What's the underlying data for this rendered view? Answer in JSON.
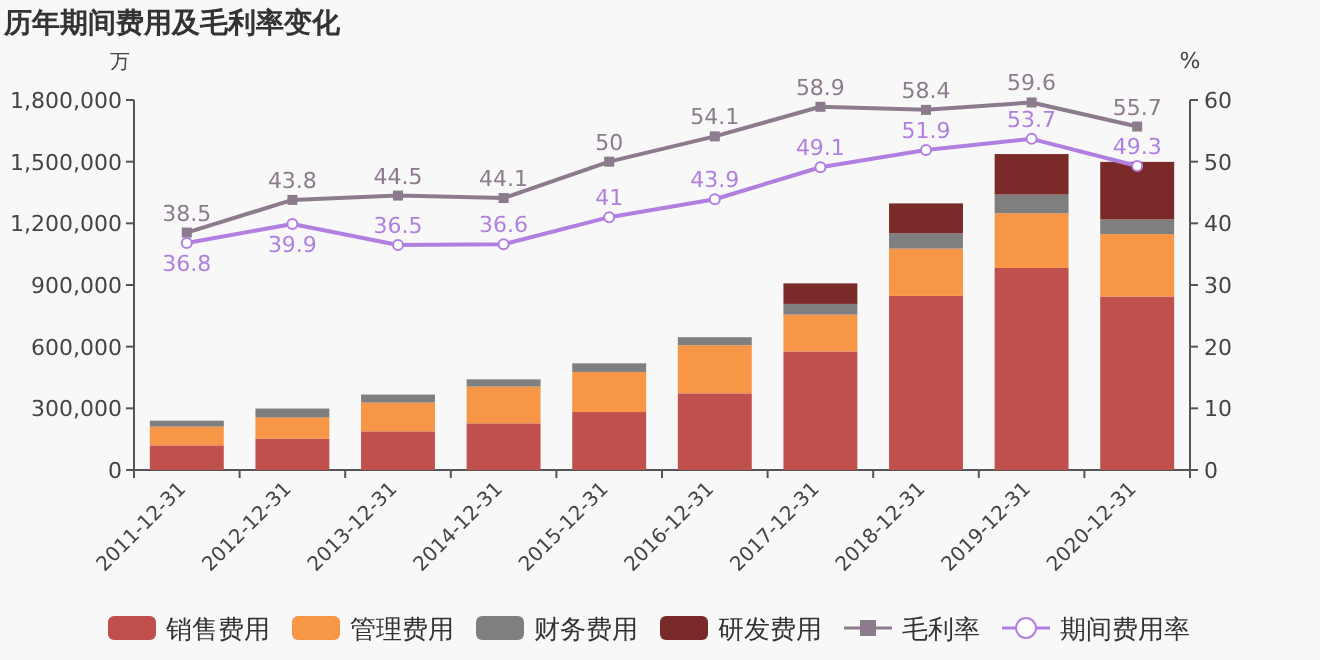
{
  "chart_data": {
    "type": "bar",
    "stacked": true,
    "title": "历年期间费用及毛利率变化",
    "ylabel": "万",
    "y2label": "%",
    "categories": [
      "2011-12-31",
      "2012-12-31",
      "2013-12-31",
      "2014-12-31",
      "2015-12-31",
      "2016-12-31",
      "2017-12-31",
      "2018-12-31",
      "2019-12-31",
      "2020-12-31"
    ],
    "series": [
      {
        "name": "销售费用",
        "color": "#c0504d",
        "values": [
          120000,
          153000,
          188000,
          227000,
          282000,
          373000,
          577000,
          847000,
          983000,
          844000
        ]
      },
      {
        "name": "管理费用",
        "color": "#f79646",
        "values": [
          91000,
          103000,
          140000,
          179000,
          195000,
          234000,
          179000,
          230000,
          266000,
          304000
        ]
      },
      {
        "name": "财务费用",
        "color": "#7f7f7f",
        "values": [
          29000,
          43000,
          39000,
          35000,
          42000,
          39000,
          52000,
          74000,
          91000,
          71000
        ]
      },
      {
        "name": "研发费用",
        "color": "#7b2a2a",
        "values": [
          null,
          null,
          null,
          null,
          null,
          null,
          100000,
          146000,
          197000,
          280000
        ]
      },
      {
        "name": "毛利率",
        "type": "line",
        "axis": "y2",
        "marker": "square",
        "color": "#8c7b8c",
        "values": [
          38.5,
          43.8,
          44.5,
          44.1,
          50,
          54.1,
          58.9,
          58.4,
          59.6,
          55.7
        ],
        "value_labels": [
          "38.5",
          "43.8",
          "44.5",
          "44.1",
          "50",
          "54.1",
          "58.9",
          "58.4",
          "59.6",
          "55.7"
        ]
      },
      {
        "name": "期间费用率",
        "type": "line",
        "axis": "y2",
        "marker": "circle",
        "color": "#b07fe0",
        "values": [
          36.8,
          39.9,
          36.5,
          36.6,
          41,
          43.9,
          49.1,
          51.9,
          53.7,
          49.3
        ],
        "value_labels": [
          "36.8",
          "39.9",
          "36.5",
          "36.6",
          "41",
          "43.9",
          "49.1",
          "51.9",
          "53.7",
          "49.3"
        ]
      }
    ],
    "ylim": [
      0,
      1800000
    ],
    "yticks": [
      0,
      {
        "value": 300000,
        "label": "300,000"
      },
      {
        "value": 600000,
        "label": "600,000"
      },
      {
        "value": 900000,
        "label": "900,000"
      },
      {
        "value": 1200000,
        "label": "1,200,000"
      },
      {
        "value": 1500000,
        "label": "1,500,000"
      },
      {
        "value": 1800000,
        "label": "1,800,000"
      }
    ],
    "y2lim": [
      0,
      60
    ],
    "y2ticks": [
      0,
      10,
      20,
      30,
      40,
      50,
      60
    ],
    "legend": "bottom",
    "grid": false
  }
}
